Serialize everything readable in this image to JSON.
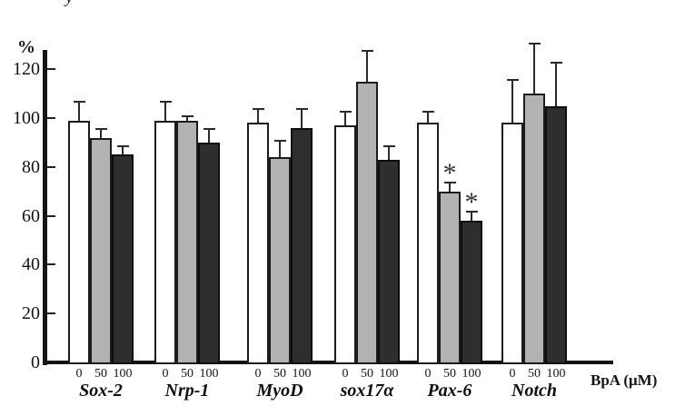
{
  "figure": {
    "cropped_fragment": "y",
    "background": "#ffffff"
  },
  "chart_data": {
    "type": "bar",
    "title": "",
    "ylabel": "%",
    "xlabel": "BpA (μM)",
    "ylim": [
      0,
      130
    ],
    "yticks": [
      0,
      20,
      40,
      60,
      80,
      100,
      120
    ],
    "grid": false,
    "legend_position": "none",
    "categories": [
      "Sox-2",
      "Nrp-1",
      "MyoD",
      "sox17α",
      "Pax-6",
      "Notch"
    ],
    "dose_labels": [
      "0",
      "50",
      "100"
    ],
    "series": [
      {
        "name": "0 μM BpA",
        "fill": "#ffffff",
        "values": [
          99,
          99,
          98,
          97,
          98,
          98
        ],
        "errors_upper": [
          8,
          8,
          6,
          6,
          5,
          18
        ],
        "significant": [
          false,
          false,
          false,
          false,
          false,
          false
        ]
      },
      {
        "name": "50 μM BpA",
        "fill": "#b2b2b2",
        "values": [
          92,
          99,
          84,
          115,
          70,
          110
        ],
        "errors_upper": [
          4,
          2,
          7,
          13,
          4,
          21
        ],
        "significant": [
          false,
          false,
          false,
          false,
          true,
          false
        ]
      },
      {
        "name": "100 μM BpA",
        "fill": "#2e2e2e",
        "values": [
          85,
          90,
          96,
          83,
          58,
          105
        ],
        "errors_upper": [
          4,
          6,
          8,
          6,
          4,
          18
        ],
        "significant": [
          false,
          false,
          false,
          false,
          true,
          false
        ]
      }
    ],
    "significance_marker": "*",
    "colors": {
      "axis": "#141414",
      "error_bar": "#2a2a2a",
      "text": "#111111"
    }
  }
}
